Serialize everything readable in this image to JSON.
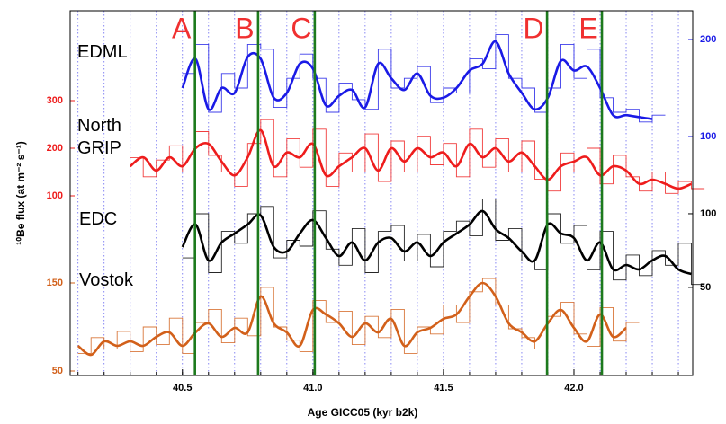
{
  "chart_data": {
    "type": "stacked-line",
    "xlabel": "Age GICC05 (kyr b2k)",
    "ylabel": "¹⁰Be flux (at m⁻² s⁻¹)",
    "xlim": [
      40.07,
      42.455
    ],
    "xticks": [
      40.5,
      {
        "value": 41,
        "label": "41.0"
      },
      41.5,
      {
        "value": 42,
        "label": "42.0"
      }
    ],
    "xgrid": [
      40.1,
      40.2,
      40.3,
      40.4,
      40.5,
      40.6,
      40.7,
      40.8,
      40.9,
      41.0,
      41.1,
      41.2,
      41.3,
      41.4,
      41.5,
      41.6,
      41.7,
      41.8,
      41.9,
      42.0,
      42.1,
      42.2,
      42.3,
      42.4
    ],
    "xgrid_color": "#6a6af0",
    "event_color": "#1d7a1d",
    "event_label_color": "#f03030",
    "events": [
      {
        "label": "A",
        "x": 40.548
      },
      {
        "label": "B",
        "x": 40.79
      },
      {
        "label": "C",
        "x": 41.007
      },
      {
        "label": "D",
        "x": 41.897
      },
      {
        "label": "E",
        "x": 42.107
      }
    ],
    "series": [
      {
        "name": "EDML",
        "color": "#1a1ae6",
        "axis": "right",
        "ylim": [
          -146.3,
          229.6
        ],
        "yticks": [
          100,
          200
        ],
        "x": [
          40.5,
          40.55,
          40.6,
          40.65,
          40.7,
          40.75,
          40.8,
          40.85,
          40.9,
          40.95,
          41.0,
          41.05,
          41.1,
          41.15,
          41.2,
          41.25,
          41.3,
          41.35,
          41.4,
          41.45,
          41.5,
          41.55,
          41.6,
          41.65,
          41.7,
          41.75,
          41.8,
          41.85,
          41.9,
          41.95,
          42.0,
          42.05,
          42.1,
          42.15,
          42.2,
          42.25,
          42.3
        ],
        "values": [
          165,
          195,
          125,
          165,
          150,
          195,
          190,
          130,
          160,
          185,
          160,
          125,
          155,
          138,
          128,
          190,
          150,
          160,
          172,
          135,
          150,
          145,
          180,
          170,
          205,
          160,
          150,
          125,
          150,
          195,
          160,
          190,
          140,
          125,
          128,
          115,
          122
        ],
        "smooth": [
          150,
          180,
          128,
          150,
          145,
          182,
          180,
          140,
          145,
          175,
          170,
          132,
          142,
          148,
          130,
          175,
          160,
          148,
          165,
          142,
          140,
          150,
          168,
          175,
          198,
          165,
          145,
          128,
          140,
          178,
          168,
          172,
          150,
          122,
          122,
          120,
          118
        ]
      },
      {
        "name": "North GRIP",
        "color": "#ee1c1c",
        "axis": "left",
        "ylim": [
          -277.4,
          488.7
        ],
        "yticks": [
          100,
          200,
          300
        ],
        "x": [
          40.3,
          40.35,
          40.4,
          40.45,
          40.5,
          40.55,
          40.6,
          40.65,
          40.7,
          40.75,
          40.8,
          40.85,
          40.9,
          40.95,
          41.0,
          41.05,
          41.1,
          41.15,
          41.2,
          41.25,
          41.3,
          41.35,
          41.4,
          41.45,
          41.5,
          41.55,
          41.6,
          41.65,
          41.7,
          41.75,
          41.8,
          41.85,
          41.9,
          41.95,
          42.0,
          42.05,
          42.1,
          42.15,
          42.2,
          42.25,
          42.3,
          42.35,
          42.4,
          42.45
        ],
        "values": [
          180,
          140,
          175,
          205,
          150,
          235,
          185,
          150,
          120,
          210,
          260,
          140,
          220,
          160,
          240,
          120,
          190,
          150,
          230,
          130,
          215,
          150,
          225,
          165,
          210,
          140,
          240,
          160,
          220,
          150,
          215,
          135,
          110,
          190,
          150,
          200,
          125,
          185,
          140,
          110,
          150,
          105,
          130,
          115
        ],
        "smooth": [
          162,
          181,
          153,
          181,
          162,
          200,
          209,
          172,
          143,
          181,
          238,
          162,
          191,
          181,
          209,
          143,
          162,
          181,
          200,
          153,
          200,
          172,
          200,
          181,
          191,
          162,
          209,
          181,
          200,
          172,
          191,
          162,
          134,
          162,
          172,
          181,
          143,
          162,
          153,
          125,
          134,
          125,
          115,
          125
        ]
      },
      {
        "name": "EDC",
        "color": "#000000",
        "axis": "right",
        "ylim": [
          -9.8,
          237.8
        ],
        "yticks": [
          50,
          100
        ],
        "x": [
          40.5,
          40.55,
          40.6,
          40.65,
          40.7,
          40.75,
          40.8,
          40.85,
          40.9,
          40.95,
          41.0,
          41.05,
          41.1,
          41.15,
          41.2,
          41.25,
          41.3,
          41.35,
          41.4,
          41.45,
          41.5,
          41.55,
          41.6,
          41.65,
          41.7,
          41.75,
          41.8,
          41.85,
          41.9,
          41.95,
          42.0,
          42.05,
          42.1,
          42.15,
          42.2,
          42.25,
          42.3,
          42.35,
          42.4,
          42.45
        ],
        "values": [
          70,
          100,
          60,
          88,
          80,
          100,
          105,
          70,
          82,
          78,
          102,
          76,
          65,
          90,
          60,
          88,
          92,
          68,
          86,
          64,
          88,
          95,
          85,
          110,
          82,
          90,
          68,
          62,
          100,
          80,
          92,
          62,
          88,
          55,
          72,
          58,
          75,
          65,
          80,
          52
        ],
        "smooth": [
          77.4,
          92.7,
          68.3,
          80.5,
          86.6,
          92.7,
          98.8,
          77.4,
          74.4,
          86.6,
          95.7,
          83.5,
          71.3,
          80.5,
          68.3,
          80.5,
          83.5,
          74.4,
          80.5,
          71.3,
          80.5,
          86.6,
          92.7,
          101.8,
          89.6,
          83.5,
          74.4,
          68.3,
          92.7,
          86.6,
          83.5,
          68.3,
          80.5,
          62.2,
          65.2,
          62.2,
          68.3,
          71.3,
          62.2,
          59.1
        ]
      },
      {
        "name": "Vostok",
        "color": "#d2601a",
        "axis": "left",
        "ylim": [
          44.9,
          459.2
        ],
        "yticks": [
          50,
          150
        ],
        "x": [
          40.1,
          40.15,
          40.2,
          40.25,
          40.3,
          40.35,
          40.4,
          40.45,
          40.5,
          40.55,
          40.6,
          40.65,
          40.7,
          40.75,
          40.8,
          40.85,
          40.9,
          40.95,
          41.0,
          41.05,
          41.1,
          41.15,
          41.2,
          41.25,
          41.3,
          41.35,
          41.4,
          41.45,
          41.5,
          41.55,
          41.6,
          41.65,
          41.7,
          41.75,
          41.8,
          41.85,
          41.9,
          41.95,
          42.0,
          42.05,
          42.1,
          42.15,
          42.2
        ],
        "values": [
          70,
          88,
          75,
          95,
          72,
          100,
          80,
          110,
          70,
          105,
          120,
          82,
          110,
          90,
          145,
          100,
          85,
          72,
          130,
          105,
          118,
          80,
          112,
          88,
          120,
          70,
          100,
          92,
          125,
          105,
          140,
          155,
          125,
          98,
          88,
          75,
          112,
          128,
          92,
          78,
          122,
          84,
          105
        ],
        "smooth": [
          78.6,
          68.4,
          83.7,
          78.6,
          83.7,
          78.6,
          88.8,
          93.9,
          78.6,
          93.9,
          104.1,
          88.8,
          99.0,
          93.9,
          134.7,
          104.1,
          93.9,
          78.6,
          119.4,
          114.3,
          104.1,
          88.8,
          104.1,
          93.9,
          109.2,
          78.6,
          93.9,
          99.0,
          109.2,
          114.3,
          134.7,
          150.0,
          134.7,
          104.1,
          93.9,
          83.7,
          104.1,
          119.4,
          99.0,
          83.7,
          114.3,
          88.8,
          99.0
        ]
      }
    ]
  }
}
